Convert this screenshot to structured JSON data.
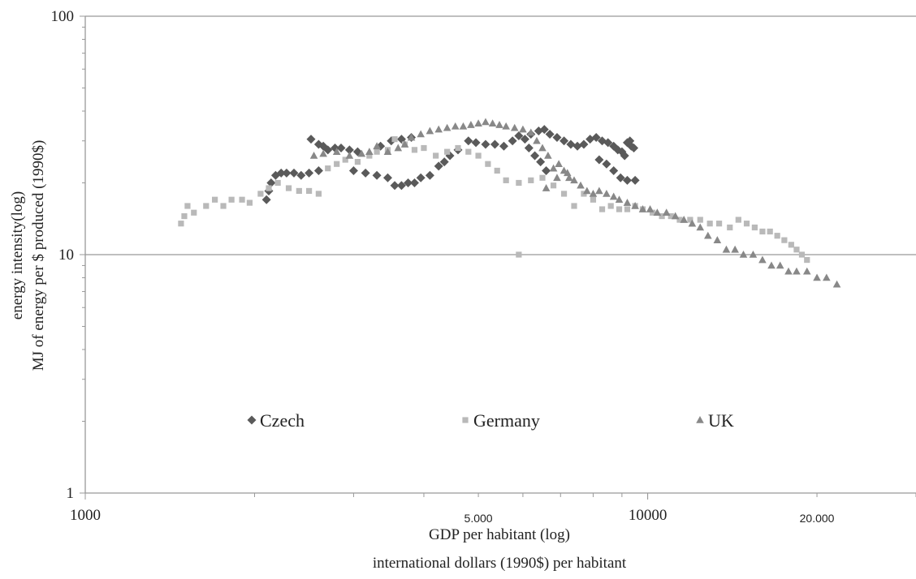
{
  "chart_data": {
    "type": "scatter",
    "title": "",
    "x_scale": "log",
    "y_scale": "log",
    "xlim": [
      1000,
      30000
    ],
    "ylim": [
      1,
      100
    ],
    "grid": {
      "y_major": true,
      "x": false
    },
    "legend_position": "inside-lower-middle",
    "xlabel": [
      "GDP per habitant (log)",
      "international dollars (1990$) per habitant"
    ],
    "ylabel": [
      "energy intensity(log)",
      "MJ of energy per $ produced (1990$)"
    ],
    "x_tick_labels": [
      {
        "value": 1000,
        "label": "1000"
      },
      {
        "value": 5000,
        "label": "5.000"
      },
      {
        "value": 10000,
        "label": "10000"
      },
      {
        "value": 20000,
        "label": "20.000"
      }
    ],
    "y_tick_labels": [
      {
        "value": 1,
        "label": "1"
      },
      {
        "value": 10,
        "label": "10"
      },
      {
        "value": 100,
        "label": "100"
      }
    ],
    "colors": {
      "Czech": "#5a5a5a",
      "Germany": "#b9b9b9",
      "UK": "#888888",
      "axis": "#999999",
      "gridline": "#999999"
    },
    "series": [
      {
        "name": "Czech",
        "marker": "diamond",
        "points": [
          [
            2100,
            17
          ],
          [
            2120,
            18.5
          ],
          [
            2140,
            20
          ],
          [
            2180,
            21.5
          ],
          [
            2230,
            22
          ],
          [
            2280,
            22
          ],
          [
            2350,
            22
          ],
          [
            2420,
            21.5
          ],
          [
            2500,
            22
          ],
          [
            2600,
            22.5
          ],
          [
            2520,
            30.5
          ],
          [
            2600,
            29
          ],
          [
            2650,
            28.5
          ],
          [
            2700,
            27.5
          ],
          [
            2780,
            28
          ],
          [
            2850,
            28
          ],
          [
            2950,
            27.5
          ],
          [
            3050,
            27
          ],
          [
            3000,
            22.5
          ],
          [
            3150,
            22
          ],
          [
            3300,
            21.5
          ],
          [
            3450,
            21
          ],
          [
            3550,
            19.5
          ],
          [
            3650,
            19.5
          ],
          [
            3750,
            20
          ],
          [
            3850,
            20
          ],
          [
            3950,
            21
          ],
          [
            4100,
            21.5
          ],
          [
            4250,
            23.5
          ],
          [
            4350,
            24.5
          ],
          [
            4450,
            26
          ],
          [
            3350,
            28.5
          ],
          [
            3500,
            30
          ],
          [
            3650,
            30.5
          ],
          [
            3800,
            31
          ],
          [
            4600,
            27.5
          ],
          [
            4800,
            30
          ],
          [
            4950,
            29.5
          ],
          [
            5150,
            29
          ],
          [
            5350,
            29
          ],
          [
            5550,
            28.5
          ],
          [
            5750,
            30
          ],
          [
            5900,
            31.5
          ],
          [
            6050,
            30.5
          ],
          [
            6200,
            32
          ],
          [
            6400,
            33
          ],
          [
            6550,
            33.5
          ],
          [
            6700,
            32
          ],
          [
            6900,
            31
          ],
          [
            7100,
            30
          ],
          [
            7300,
            29
          ],
          [
            7500,
            28.5
          ],
          [
            6150,
            28
          ],
          [
            6300,
            26
          ],
          [
            6450,
            24.5
          ],
          [
            6600,
            22.5
          ],
          [
            7700,
            29
          ],
          [
            7900,
            30.5
          ],
          [
            8100,
            31
          ],
          [
            8300,
            30
          ],
          [
            8500,
            29.5
          ],
          [
            8700,
            28.5
          ],
          [
            8850,
            27.5
          ],
          [
            9000,
            27
          ],
          [
            9100,
            26
          ],
          [
            9200,
            29.5
          ],
          [
            9300,
            30
          ],
          [
            9350,
            28.5
          ],
          [
            9450,
            28
          ],
          [
            8200,
            25
          ],
          [
            8450,
            24
          ],
          [
            8700,
            22.5
          ],
          [
            8950,
            21
          ],
          [
            9200,
            20.5
          ],
          [
            9500,
            20.5
          ]
        ]
      },
      {
        "name": "Germany",
        "marker": "square",
        "points": [
          [
            1480,
            13.5
          ],
          [
            1500,
            14.5
          ],
          [
            1520,
            16
          ],
          [
            1560,
            15
          ],
          [
            1640,
            16
          ],
          [
            1700,
            17
          ],
          [
            1760,
            16
          ],
          [
            1820,
            17
          ],
          [
            1900,
            17
          ],
          [
            1960,
            16.5
          ],
          [
            2050,
            18
          ],
          [
            2120,
            19
          ],
          [
            2200,
            20
          ],
          [
            2300,
            19
          ],
          [
            2400,
            18.5
          ],
          [
            2500,
            18.5
          ],
          [
            2600,
            18
          ],
          [
            2700,
            23
          ],
          [
            2800,
            24
          ],
          [
            2900,
            25
          ],
          [
            3050,
            24.5
          ],
          [
            3200,
            26
          ],
          [
            3300,
            27
          ],
          [
            3450,
            27.5
          ],
          [
            3550,
            30.5
          ],
          [
            3700,
            29
          ],
          [
            3850,
            27.5
          ],
          [
            4000,
            28
          ],
          [
            4200,
            26
          ],
          [
            4400,
            27
          ],
          [
            4600,
            28
          ],
          [
            4800,
            27
          ],
          [
            5000,
            26
          ],
          [
            5200,
            24
          ],
          [
            5400,
            22.5
          ],
          [
            5600,
            20.5
          ],
          [
            5900,
            20
          ],
          [
            6200,
            20.5
          ],
          [
            6500,
            21
          ],
          [
            6800,
            19.5
          ],
          [
            7100,
            18
          ],
          [
            7400,
            16
          ],
          [
            7700,
            18
          ],
          [
            8000,
            17
          ],
          [
            8300,
            15.5
          ],
          [
            8600,
            16
          ],
          [
            8900,
            15.5
          ],
          [
            9200,
            15.5
          ],
          [
            9500,
            16
          ],
          [
            9800,
            15.5
          ],
          [
            10200,
            15
          ],
          [
            10600,
            14.5
          ],
          [
            11000,
            14.5
          ],
          [
            11400,
            14
          ],
          [
            11900,
            14
          ],
          [
            12400,
            14
          ],
          [
            12900,
            13.5
          ],
          [
            13400,
            13.5
          ],
          [
            14000,
            13
          ],
          [
            14500,
            14
          ],
          [
            15000,
            13.5
          ],
          [
            15500,
            13
          ],
          [
            16000,
            12.5
          ],
          [
            16500,
            12.5
          ],
          [
            17000,
            12
          ],
          [
            17500,
            11.5
          ],
          [
            18000,
            11
          ],
          [
            18400,
            10.5
          ],
          [
            18800,
            10
          ],
          [
            19200,
            9.5
          ],
          [
            5900,
            10
          ]
        ]
      },
      {
        "name": "UK",
        "marker": "triangle",
        "points": [
          [
            2550,
            26
          ],
          [
            2650,
            26.5
          ],
          [
            2800,
            27
          ],
          [
            2950,
            26
          ],
          [
            3100,
            26.5
          ],
          [
            3200,
            27
          ],
          [
            3300,
            28.5
          ],
          [
            3450,
            27
          ],
          [
            3600,
            28
          ],
          [
            3700,
            29
          ],
          [
            3800,
            31
          ],
          [
            3950,
            32
          ],
          [
            4100,
            33
          ],
          [
            4250,
            33.5
          ],
          [
            4400,
            34
          ],
          [
            4550,
            34.5
          ],
          [
            4700,
            34.5
          ],
          [
            4850,
            35
          ],
          [
            5000,
            35.5
          ],
          [
            5150,
            36
          ],
          [
            5300,
            35.5
          ],
          [
            5450,
            35
          ],
          [
            5600,
            34.5
          ],
          [
            5800,
            34
          ],
          [
            6000,
            33.5
          ],
          [
            6200,
            32.5
          ],
          [
            6350,
            30
          ],
          [
            6500,
            28
          ],
          [
            6650,
            26
          ],
          [
            6800,
            23
          ],
          [
            6950,
            24
          ],
          [
            7100,
            22.5
          ],
          [
            7250,
            21
          ],
          [
            7400,
            20.5
          ],
          [
            7600,
            19.5
          ],
          [
            7800,
            18.5
          ],
          [
            8000,
            18
          ],
          [
            8200,
            18.5
          ],
          [
            8450,
            18
          ],
          [
            8700,
            17.5
          ],
          [
            8900,
            17
          ],
          [
            9200,
            16.5
          ],
          [
            9500,
            16
          ],
          [
            9800,
            15.5
          ],
          [
            10100,
            15.5
          ],
          [
            10400,
            15
          ],
          [
            10800,
            15
          ],
          [
            11200,
            14.5
          ],
          [
            11600,
            14
          ],
          [
            12000,
            13.5
          ],
          [
            12400,
            13
          ],
          [
            12800,
            12
          ],
          [
            13300,
            11.5
          ],
          [
            13800,
            10.5
          ],
          [
            14300,
            10.5
          ],
          [
            14800,
            10
          ],
          [
            15400,
            10
          ],
          [
            16000,
            9.5
          ],
          [
            16600,
            9
          ],
          [
            17200,
            9
          ],
          [
            17800,
            8.5
          ],
          [
            18400,
            8.5
          ],
          [
            19200,
            8.5
          ],
          [
            20000,
            8
          ],
          [
            20800,
            8
          ],
          [
            21700,
            7.5
          ],
          [
            6600,
            19
          ],
          [
            6900,
            21
          ],
          [
            7200,
            22
          ]
        ]
      }
    ]
  }
}
